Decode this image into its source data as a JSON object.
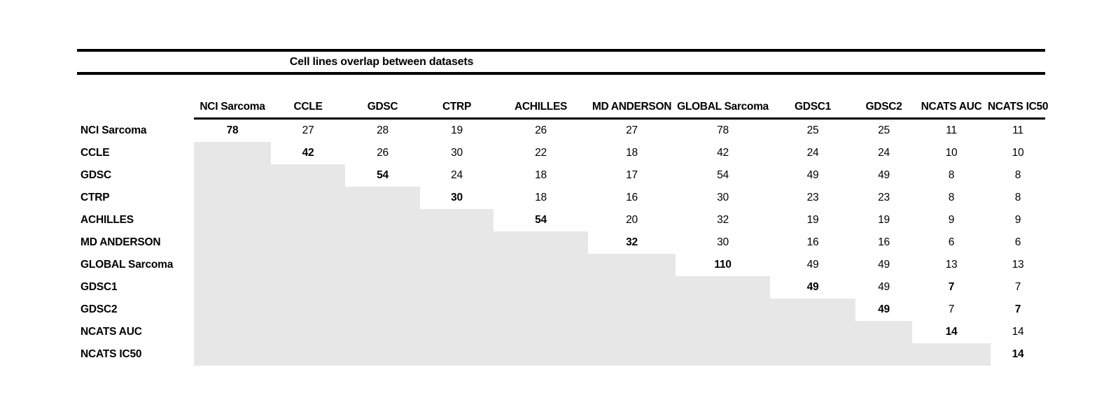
{
  "title": "Cell lines overlap between datasets",
  "colors": {
    "background": "#ffffff",
    "rule": "#000000",
    "text": "#000000",
    "shade": "#e8e7e7"
  },
  "columns": [
    "NCI Sarcoma",
    "CCLE",
    "GDSC",
    "CTRP",
    "ACHILLES",
    "MD ANDERSON",
    "GLOBAL Sarcoma",
    "GDSC1",
    "GDSC2",
    "NCATS AUC",
    "NCATS IC50"
  ],
  "rows": [
    {
      "label": "NCI Sarcoma",
      "cells": [
        {
          "value": "78",
          "bold": true
        },
        {
          "value": "27"
        },
        {
          "value": "28"
        },
        {
          "value": "19"
        },
        {
          "value": "26"
        },
        {
          "value": "27"
        },
        {
          "value": "78"
        },
        {
          "value": "25"
        },
        {
          "value": "25"
        },
        {
          "value": "11"
        },
        {
          "value": "11"
        }
      ]
    },
    {
      "label": "CCLE",
      "cells": [
        {
          "shaded": true
        },
        {
          "value": "42",
          "bold": true
        },
        {
          "value": "26"
        },
        {
          "value": "30"
        },
        {
          "value": "22"
        },
        {
          "value": "18"
        },
        {
          "value": "42"
        },
        {
          "value": "24"
        },
        {
          "value": "24"
        },
        {
          "value": "10"
        },
        {
          "value": "10"
        }
      ]
    },
    {
      "label": "GDSC",
      "cells": [
        {
          "shaded": true
        },
        {
          "shaded": true
        },
        {
          "value": "54",
          "bold": true
        },
        {
          "value": "24"
        },
        {
          "value": "18"
        },
        {
          "value": "17"
        },
        {
          "value": "54"
        },
        {
          "value": "49"
        },
        {
          "value": "49"
        },
        {
          "value": "8"
        },
        {
          "value": "8"
        }
      ]
    },
    {
      "label": "CTRP",
      "cells": [
        {
          "shaded": true
        },
        {
          "shaded": true
        },
        {
          "shaded": true
        },
        {
          "value": "30",
          "bold": true
        },
        {
          "value": "18"
        },
        {
          "value": "16"
        },
        {
          "value": "30"
        },
        {
          "value": "23"
        },
        {
          "value": "23"
        },
        {
          "value": "8"
        },
        {
          "value": "8"
        }
      ]
    },
    {
      "label": "ACHILLES",
      "cells": [
        {
          "shaded": true
        },
        {
          "shaded": true
        },
        {
          "shaded": true
        },
        {
          "shaded": true
        },
        {
          "value": "54",
          "bold": true
        },
        {
          "value": "20"
        },
        {
          "value": "32"
        },
        {
          "value": "19"
        },
        {
          "value": "19"
        },
        {
          "value": "9"
        },
        {
          "value": "9"
        }
      ]
    },
    {
      "label": "MD ANDERSON",
      "cells": [
        {
          "shaded": true
        },
        {
          "shaded": true
        },
        {
          "shaded": true
        },
        {
          "shaded": true
        },
        {
          "shaded": true
        },
        {
          "value": "32",
          "bold": true
        },
        {
          "value": "30"
        },
        {
          "value": "16"
        },
        {
          "value": "16"
        },
        {
          "value": "6"
        },
        {
          "value": "6"
        }
      ]
    },
    {
      "label": "GLOBAL Sarcoma",
      "cells": [
        {
          "shaded": true
        },
        {
          "shaded": true
        },
        {
          "shaded": true
        },
        {
          "shaded": true
        },
        {
          "shaded": true
        },
        {
          "shaded": true
        },
        {
          "value": "110",
          "bold": true
        },
        {
          "value": "49"
        },
        {
          "value": "49"
        },
        {
          "value": "13"
        },
        {
          "value": "13"
        }
      ]
    },
    {
      "label": "GDSC1",
      "cells": [
        {
          "shaded": true
        },
        {
          "shaded": true
        },
        {
          "shaded": true
        },
        {
          "shaded": true
        },
        {
          "shaded": true
        },
        {
          "shaded": true
        },
        {
          "shaded": true
        },
        {
          "value": "49",
          "bold": true
        },
        {
          "value": "49"
        },
        {
          "value": "7",
          "bold": true
        },
        {
          "value": "7"
        }
      ]
    },
    {
      "label": "GDSC2",
      "cells": [
        {
          "shaded": true
        },
        {
          "shaded": true
        },
        {
          "shaded": true
        },
        {
          "shaded": true
        },
        {
          "shaded": true
        },
        {
          "shaded": true
        },
        {
          "shaded": true
        },
        {
          "shaded": true
        },
        {
          "value": "49",
          "bold": true
        },
        {
          "value": "7"
        },
        {
          "value": "7",
          "bold": true
        }
      ]
    },
    {
      "label": "NCATS AUC",
      "cells": [
        {
          "shaded": true
        },
        {
          "shaded": true
        },
        {
          "shaded": true
        },
        {
          "shaded": true
        },
        {
          "shaded": true
        },
        {
          "shaded": true
        },
        {
          "shaded": true
        },
        {
          "shaded": true
        },
        {
          "shaded": true
        },
        {
          "value": "14",
          "bold": true
        },
        {
          "value": "14"
        }
      ]
    },
    {
      "label": "NCATS IC50",
      "cells": [
        {
          "shaded": true
        },
        {
          "shaded": true
        },
        {
          "shaded": true
        },
        {
          "shaded": true
        },
        {
          "shaded": true
        },
        {
          "shaded": true
        },
        {
          "shaded": true
        },
        {
          "shaded": true
        },
        {
          "shaded": true
        },
        {
          "shaded": true
        },
        {
          "value": "14",
          "bold": true
        }
      ]
    }
  ],
  "chart_data": {
    "type": "table",
    "title": "Cell lines overlap between datasets",
    "col_labels": [
      "NCI Sarcoma",
      "CCLE",
      "GDSC",
      "CTRP",
      "ACHILLES",
      "MD ANDERSON",
      "GLOBAL Sarcoma",
      "GDSC1",
      "GDSC2",
      "NCATS AUC",
      "NCATS IC50"
    ],
    "row_labels": [
      "NCI Sarcoma",
      "CCLE",
      "GDSC",
      "CTRP",
      "ACHILLES",
      "MD ANDERSON",
      "GLOBAL Sarcoma",
      "GDSC1",
      "GDSC2",
      "NCATS AUC",
      "NCATS IC50"
    ],
    "matrix": [
      [
        78,
        27,
        28,
        19,
        26,
        27,
        78,
        25,
        25,
        11,
        11
      ],
      [
        null,
        42,
        26,
        30,
        22,
        18,
        42,
        24,
        24,
        10,
        10
      ],
      [
        null,
        null,
        54,
        24,
        18,
        17,
        54,
        49,
        49,
        8,
        8
      ],
      [
        null,
        null,
        null,
        30,
        18,
        16,
        30,
        23,
        23,
        8,
        8
      ],
      [
        null,
        null,
        null,
        null,
        54,
        20,
        32,
        19,
        19,
        9,
        9
      ],
      [
        null,
        null,
        null,
        null,
        null,
        32,
        30,
        16,
        16,
        6,
        6
      ],
      [
        null,
        null,
        null,
        null,
        null,
        null,
        110,
        49,
        49,
        13,
        13
      ],
      [
        null,
        null,
        null,
        null,
        null,
        null,
        null,
        49,
        49,
        7,
        7
      ],
      [
        null,
        null,
        null,
        null,
        null,
        null,
        null,
        null,
        49,
        7,
        7
      ],
      [
        null,
        null,
        null,
        null,
        null,
        null,
        null,
        null,
        null,
        14,
        14
      ],
      [
        null,
        null,
        null,
        null,
        null,
        null,
        null,
        null,
        null,
        null,
        14
      ]
    ],
    "layout_hints": {
      "lower_triangle": "shaded gray, empty",
      "diagonal": "bold values",
      "extra_bold_cells": [
        [
          "GDSC1",
          "NCATS AUC"
        ],
        [
          "GDSC2",
          "NCATS IC50"
        ]
      ]
    }
  }
}
